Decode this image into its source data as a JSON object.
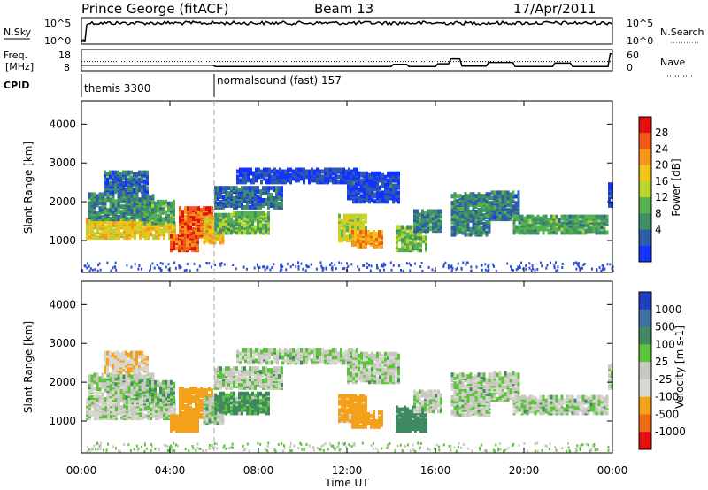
{
  "chart_data": {
    "type": "heatmap",
    "header": {
      "station": "Prince George (fitACF)",
      "beam": "Beam 13",
      "date": "17/Apr/2011"
    },
    "noise_panel": {
      "left_label": "N.Sky",
      "right_label": "N.Search",
      "left_ticks": [
        "10^5",
        "10^0"
      ],
      "right_ticks": [
        "10^5",
        "10^0"
      ]
    },
    "freq_panel": {
      "left_label_1": "Freq.",
      "left_label_2": "[MHz]",
      "right_label": "Nave",
      "left_ticks": [
        "18",
        "8"
      ],
      "right_ticks": [
        "60",
        "0"
      ],
      "freq_mhz": [
        [
          0,
          10.6
        ],
        [
          5.95,
          10.6
        ],
        [
          6.05,
          10.0
        ],
        [
          14.0,
          10.0
        ],
        [
          14.1,
          11.0
        ],
        [
          14.7,
          11.0
        ],
        [
          14.8,
          10.0
        ],
        [
          16.0,
          10.0
        ],
        [
          16.1,
          11.3
        ],
        [
          16.6,
          11.3
        ],
        [
          16.7,
          13.6
        ],
        [
          17.1,
          13.6
        ],
        [
          17.2,
          10.2
        ],
        [
          18.3,
          10.2
        ],
        [
          18.4,
          11.9
        ],
        [
          19.5,
          11.9
        ],
        [
          19.6,
          10.0
        ],
        [
          21.3,
          10.0
        ],
        [
          21.4,
          11.6
        ],
        [
          22.1,
          11.6
        ],
        [
          22.2,
          10.0
        ],
        [
          23.8,
          10.0
        ],
        [
          23.9,
          16.0
        ],
        [
          24.0,
          16.0
        ]
      ],
      "nave_level": 26
    },
    "cpid": {
      "label": "CPID",
      "segments": [
        {
          "name": "themis 3300",
          "start_hour": 0
        },
        {
          "name": "normalsound (fast) 157",
          "start_hour": 6
        }
      ]
    },
    "x_axis": {
      "label": "Time UT",
      "range_hours": [
        0,
        24
      ],
      "ticks": [
        "00:00",
        "04:00",
        "08:00",
        "12:00",
        "16:00",
        "20:00",
        "00:00"
      ]
    },
    "y_axis": {
      "label": "Slant Range [km]",
      "range_km": [
        180,
        4600
      ],
      "ticks": [
        1000,
        2000,
        3000,
        4000
      ]
    },
    "power": {
      "colorbar_label": "Power [dB]",
      "ticks": [
        "4",
        "8",
        "12",
        "16",
        "20",
        "24",
        "28"
      ],
      "colors": [
        "#1432ff",
        "#2e5ca8",
        "#3f8f66",
        "#56b24c",
        "#b9d430",
        "#f2c419",
        "#f5961a",
        "#ef5a14",
        "#e01010"
      ]
    },
    "velocity": {
      "colorbar_label": "Velocity [m s-1]",
      "ticks": [
        "1000",
        "500",
        "100",
        "25",
        "-25",
        "-100",
        "-500",
        "-1000"
      ],
      "colors": [
        "#1f3fbf",
        "#3b6fa6",
        "#3f8a60",
        "#5cc43a",
        "#c8c8c0",
        "#d8d8d0",
        "#f5a01a",
        "#ef6a14",
        "#e01010"
      ]
    },
    "echo_regions": [
      {
        "t0": 0.2,
        "t1": 4.2,
        "r0": 1020,
        "r1": 1500,
        "power": 20,
        "vel": -10
      },
      {
        "t0": 0.3,
        "t1": 3.2,
        "r0": 1500,
        "r1": 2150,
        "power": 10,
        "vel": 10
      },
      {
        "t0": 1.0,
        "t1": 3.0,
        "r0": 2200,
        "r1": 2700,
        "power": 7,
        "vel": -80
      },
      {
        "t0": 2.8,
        "t1": 4.2,
        "r0": 1400,
        "r1": 1950,
        "power": 12,
        "vel": 40
      },
      {
        "t0": 4.0,
        "t1": 5.3,
        "r0": 700,
        "r1": 1080,
        "power": 28,
        "vel": -200
      },
      {
        "t0": 4.4,
        "t1": 5.9,
        "r0": 1050,
        "r1": 1800,
        "power": 27,
        "vel": -300
      },
      {
        "t0": 5.5,
        "t1": 6.4,
        "r0": 900,
        "r1": 1550,
        "power": 22,
        "vel": 10
      },
      {
        "t0": 6.0,
        "t1": 8.5,
        "r0": 1150,
        "r1": 1650,
        "power": 14,
        "vel": 80
      },
      {
        "t0": 6.0,
        "t1": 9.0,
        "r0": 1800,
        "r1": 2300,
        "power": 8,
        "vel": 5
      },
      {
        "t0": 7.0,
        "t1": 12.5,
        "r0": 2450,
        "r1": 2780,
        "power": 5,
        "vel": 5
      },
      {
        "t0": 12.0,
        "t1": 14.3,
        "r0": 1950,
        "r1": 2700,
        "power": 5,
        "vel": 5
      },
      {
        "t0": 11.6,
        "t1": 12.8,
        "r0": 950,
        "r1": 1600,
        "power": 18,
        "vel": -150
      },
      {
        "t0": 12.2,
        "t1": 13.6,
        "r0": 800,
        "r1": 1200,
        "power": 24,
        "vel": -300
      },
      {
        "t0": 14.2,
        "t1": 15.6,
        "r0": 700,
        "r1": 1300,
        "power": 14,
        "vel": 150
      },
      {
        "t0": 15.0,
        "t1": 16.3,
        "r0": 1200,
        "r1": 1700,
        "power": 10,
        "vel": 5
      },
      {
        "t0": 16.7,
        "t1": 18.4,
        "r0": 1100,
        "r1": 2150,
        "power": 10,
        "vel": 10
      },
      {
        "t0": 18.5,
        "t1": 19.8,
        "r0": 1500,
        "r1": 2200,
        "power": 9,
        "vel": 5
      },
      {
        "t0": 19.5,
        "t1": 23.8,
        "r0": 1150,
        "r1": 1600,
        "power": 12,
        "vel": 5
      },
      {
        "t0": 23.8,
        "t1": 24.0,
        "r0": 1800,
        "r1": 2400,
        "power": 6,
        "vel": 5
      }
    ]
  }
}
